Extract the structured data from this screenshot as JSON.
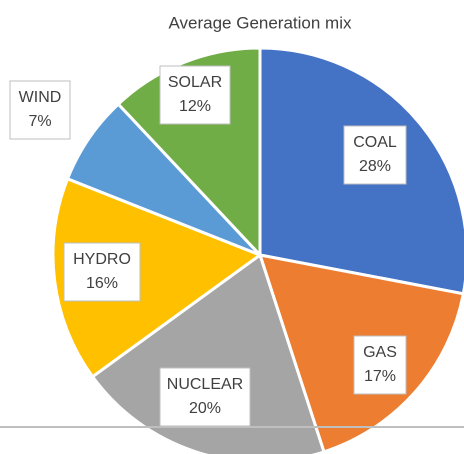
{
  "chart_data": {
    "type": "pie",
    "title": "Average Generation mix",
    "categories": [
      "COAL",
      "GAS",
      "NUCLEAR",
      "HYDRO",
      "WIND",
      "SOLAR"
    ],
    "values": [
      28,
      17,
      20,
      16,
      7,
      12
    ],
    "value_labels": [
      "28%",
      "17%",
      "20%",
      "16%",
      "7%",
      "12%"
    ],
    "colors": [
      "#4472c4",
      "#ed7d31",
      "#a5a5a5",
      "#ffc000",
      "#5b9bd5",
      "#70ad47"
    ]
  }
}
